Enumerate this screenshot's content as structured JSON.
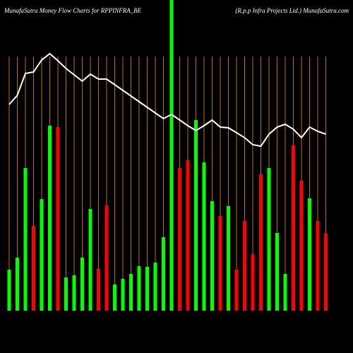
{
  "chart_data": {
    "type": "bar",
    "title": "MunafaSutra  Money Flow  Charts for RPPINFRA_BE",
    "subtitle": "(R.p.p Infra  Projects Ltd.) MunafaSutra.com",
    "categories": [
      null,
      null,
      null,
      null,
      null,
      null,
      null,
      null,
      null,
      null,
      null,
      null,
      null,
      null,
      null,
      null,
      null,
      null,
      null,
      null,
      null,
      null,
      null,
      null,
      null,
      null,
      null,
      null,
      null,
      null,
      null,
      null,
      null,
      null,
      null,
      null,
      null,
      null,
      null,
      null
    ],
    "values": [
      58,
      75,
      202,
      120,
      158,
      262,
      260,
      47,
      50,
      75,
      144,
      59,
      149,
      37,
      45,
      52,
      63,
      62,
      68,
      104,
      440,
      202,
      213,
      270,
      210,
      155,
      134,
      148,
      58,
      127,
      80,
      193,
      202,
      110,
      52,
      234,
      184,
      159,
      127,
      109
    ],
    "colors": [
      "#00ff00",
      "#00ff00",
      "#00ff00",
      "#ff0000",
      "#00ff00",
      "#00ff00",
      "#ff0000",
      "#00ff00",
      "#00ff00",
      "#00ff00",
      "#00ff00",
      "#ff0000",
      "#ff0000",
      "#00ff00",
      "#00ff00",
      "#00ff00",
      "#00ff00",
      "#00ff00",
      "#00ff00",
      "#00ff00",
      "#00ff00",
      "#ff0000",
      "#ff0000",
      "#00ff00",
      "#00ff00",
      "#00ff00",
      "#ff0000",
      "#00ff00",
      "#ff0000",
      "#ff0000",
      "#ff0000",
      "#ff0000",
      "#00ff00",
      "#00ff00",
      "#00ff00",
      "#ff0000",
      "#ff0000",
      "#00ff00",
      "#ff0000",
      "#ff0000"
    ],
    "line": {
      "color": "#ffffff",
      "values": [
        292,
        305,
        336,
        338,
        355,
        364,
        354,
        343,
        334,
        325,
        335,
        328,
        328,
        320,
        312,
        304,
        296,
        288,
        280,
        272,
        278,
        270,
        262,
        255,
        262,
        270,
        260,
        259,
        252,
        245,
        235,
        233,
        250,
        260,
        264,
        257,
        245,
        260,
        254,
        250
      ]
    },
    "ylim": [
      0,
      440
    ],
    "grid": true,
    "grid_color": "#b8730f"
  }
}
